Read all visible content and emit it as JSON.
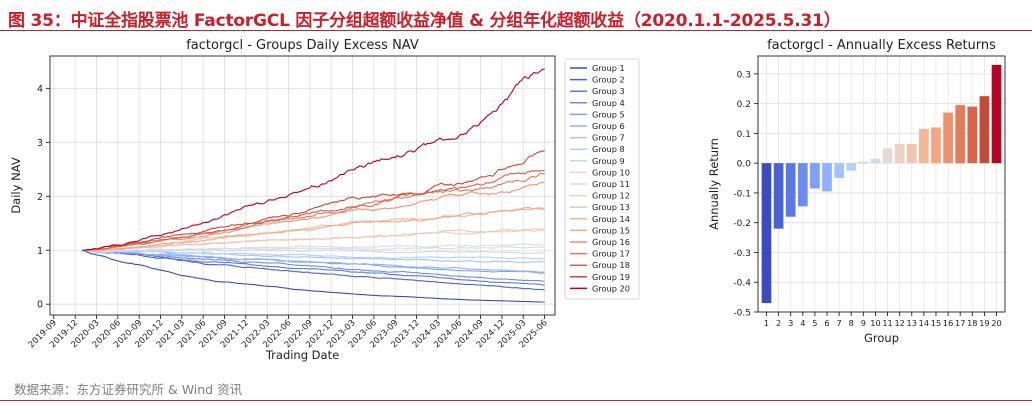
{
  "figure": {
    "title": "图 35：中证全指股票池 FactorGCL 因子分组超额收益净值 & 分组年化超额收益（2020.1.1-2025.5.31）",
    "source": "数据来源：东方证券研究所 & Wind 资讯",
    "accent_color": "#c8202a"
  },
  "chart_data": [
    {
      "type": "line",
      "title": "factorgcl - Groups Daily Excess NAV",
      "xlabel": "Trading Date",
      "ylabel": "Daily NAV",
      "x_ticks": [
        "2019-09",
        "2019-12",
        "2020-03",
        "2020-06",
        "2020-09",
        "2020-12",
        "2021-03",
        "2021-06",
        "2021-09",
        "2021-12",
        "2022-03",
        "2022-06",
        "2022-09",
        "2022-12",
        "2023-03",
        "2023-06",
        "2023-09",
        "2023-12",
        "2024-03",
        "2024-06",
        "2024-09",
        "2024-12",
        "2025-03",
        "2025-06"
      ],
      "y_ticks": [
        0,
        1,
        2,
        3,
        4
      ],
      "ylim": [
        -0.2,
        4.6
      ],
      "grid": true,
      "legend_position": "right",
      "series": [
        {
          "name": "Group 1",
          "color": "#3b4cc0",
          "values": [
            {
              "date": "2020-01-01",
              "nav": 1.0
            },
            {
              "date": "2020-06-30",
              "nav": 0.78
            },
            {
              "date": "2021-06-30",
              "nav": 0.45
            },
            {
              "date": "2022-06-30",
              "nav": 0.27
            },
            {
              "date": "2023-06-30",
              "nav": 0.16
            },
            {
              "date": "2024-06-30",
              "nav": 0.08
            },
            {
              "date": "2025-05-31",
              "nav": 0.04
            }
          ]
        },
        {
          "name": "Group 2",
          "color": "#4a63d3",
          "values": [
            {
              "date": "2020-01-01",
              "nav": 1.0
            },
            {
              "date": "2020-06-30",
              "nav": 0.93
            },
            {
              "date": "2021-06-30",
              "nav": 0.74
            },
            {
              "date": "2022-06-30",
              "nav": 0.6
            },
            {
              "date": "2023-06-30",
              "nav": 0.5
            },
            {
              "date": "2024-06-30",
              "nav": 0.38
            },
            {
              "date": "2025-05-31",
              "nav": 0.27
            }
          ]
        },
        {
          "name": "Group 3",
          "color": "#5a78e4",
          "values": [
            {
              "date": "2020-01-01",
              "nav": 1.0
            },
            {
              "date": "2020-06-30",
              "nav": 0.94
            },
            {
              "date": "2021-06-30",
              "nav": 0.79
            },
            {
              "date": "2022-06-30",
              "nav": 0.66
            },
            {
              "date": "2023-06-30",
              "nav": 0.57
            },
            {
              "date": "2024-06-30",
              "nav": 0.45
            },
            {
              "date": "2025-05-31",
              "nav": 0.35
            }
          ]
        },
        {
          "name": "Group 4",
          "color": "#6b8df0",
          "values": [
            {
              "date": "2020-01-01",
              "nav": 1.0
            },
            {
              "date": "2020-06-30",
              "nav": 0.95
            },
            {
              "date": "2021-06-30",
              "nav": 0.83
            },
            {
              "date": "2022-06-30",
              "nav": 0.72
            },
            {
              "date": "2023-06-30",
              "nav": 0.63
            },
            {
              "date": "2024-06-30",
              "nav": 0.52
            },
            {
              "date": "2025-05-31",
              "nav": 0.42
            }
          ]
        },
        {
          "name": "Group 5",
          "color": "#7ea0f8",
          "values": [
            {
              "date": "2020-01-01",
              "nav": 1.0
            },
            {
              "date": "2020-06-30",
              "nav": 0.96
            },
            {
              "date": "2021-06-30",
              "nav": 0.87
            },
            {
              "date": "2022-06-30",
              "nav": 0.79
            },
            {
              "date": "2023-06-30",
              "nav": 0.72
            },
            {
              "date": "2024-06-30",
              "nav": 0.63
            },
            {
              "date": "2025-05-31",
              "nav": 0.58
            }
          ]
        },
        {
          "name": "Group 6",
          "color": "#90b2fe",
          "values": [
            {
              "date": "2020-01-01",
              "nav": 1.0
            },
            {
              "date": "2020-06-30",
              "nav": 0.96
            },
            {
              "date": "2021-06-30",
              "nav": 0.88
            },
            {
              "date": "2022-06-30",
              "nav": 0.8
            },
            {
              "date": "2023-06-30",
              "nav": 0.73
            },
            {
              "date": "2024-06-30",
              "nav": 0.65
            },
            {
              "date": "2025-05-31",
              "nav": 0.6
            }
          ]
        },
        {
          "name": "Group 7",
          "color": "#a3c2fe",
          "values": [
            {
              "date": "2020-01-01",
              "nav": 1.0
            },
            {
              "date": "2020-06-30",
              "nav": 0.98
            },
            {
              "date": "2021-06-30",
              "nav": 0.93
            },
            {
              "date": "2022-06-30",
              "nav": 0.88
            },
            {
              "date": "2023-06-30",
              "nav": 0.84
            },
            {
              "date": "2024-06-30",
              "nav": 0.8
            },
            {
              "date": "2025-05-31",
              "nav": 0.78
            }
          ]
        },
        {
          "name": "Group 8",
          "color": "#b5cffb",
          "values": [
            {
              "date": "2020-01-01",
              "nav": 1.0
            },
            {
              "date": "2020-06-30",
              "nav": 0.99
            },
            {
              "date": "2021-06-30",
              "nav": 0.95
            },
            {
              "date": "2022-06-30",
              "nav": 0.91
            },
            {
              "date": "2023-06-30",
              "nav": 0.88
            },
            {
              "date": "2024-06-30",
              "nav": 0.85
            },
            {
              "date": "2025-05-31",
              "nav": 0.83
            }
          ]
        },
        {
          "name": "Group 9",
          "color": "#c6d9f4",
          "values": [
            {
              "date": "2020-01-01",
              "nav": 1.0
            },
            {
              "date": "2020-06-30",
              "nav": 1.0
            },
            {
              "date": "2021-06-30",
              "nav": 0.99
            },
            {
              "date": "2022-06-30",
              "nav": 0.98
            },
            {
              "date": "2023-06-30",
              "nav": 0.97
            },
            {
              "date": "2024-06-30",
              "nav": 0.96
            },
            {
              "date": "2025-05-31",
              "nav": 0.95
            }
          ]
        },
        {
          "name": "Group 10",
          "color": "#d5dbe5",
          "values": [
            {
              "date": "2020-01-01",
              "nav": 1.0
            },
            {
              "date": "2020-06-30",
              "nav": 1.01
            },
            {
              "date": "2021-06-30",
              "nav": 1.02
            },
            {
              "date": "2022-06-30",
              "nav": 1.02
            },
            {
              "date": "2023-06-30",
              "nav": 1.03
            },
            {
              "date": "2024-06-30",
              "nav": 1.04
            },
            {
              "date": "2025-05-31",
              "nav": 1.05
            }
          ]
        },
        {
          "name": "Group 11",
          "color": "#e2dad5",
          "values": [
            {
              "date": "2020-01-01",
              "nav": 1.0
            },
            {
              "date": "2020-06-30",
              "nav": 1.02
            },
            {
              "date": "2021-06-30",
              "nav": 1.04
            },
            {
              "date": "2022-06-30",
              "nav": 1.05
            },
            {
              "date": "2023-06-30",
              "nav": 1.07
            },
            {
              "date": "2024-06-30",
              "nav": 1.08
            },
            {
              "date": "2025-05-31",
              "nav": 1.1
            }
          ]
        },
        {
          "name": "Group 12",
          "color": "#edd1c2",
          "values": [
            {
              "date": "2020-01-01",
              "nav": 1.0
            },
            {
              "date": "2020-06-30",
              "nav": 1.03
            },
            {
              "date": "2021-06-30",
              "nav": 1.11
            },
            {
              "date": "2022-06-30",
              "nav": 1.19
            },
            {
              "date": "2023-06-30",
              "nav": 1.26
            },
            {
              "date": "2024-06-30",
              "nav": 1.32
            },
            {
              "date": "2025-05-31",
              "nav": 1.38
            }
          ]
        },
        {
          "name": "Group 13",
          "color": "#f3c4ad",
          "values": [
            {
              "date": "2020-01-01",
              "nav": 1.0
            },
            {
              "date": "2020-06-30",
              "nav": 1.03
            },
            {
              "date": "2021-06-30",
              "nav": 1.12
            },
            {
              "date": "2022-06-30",
              "nav": 1.21
            },
            {
              "date": "2023-06-30",
              "nav": 1.28
            },
            {
              "date": "2024-06-30",
              "nav": 1.34
            },
            {
              "date": "2025-05-31",
              "nav": 1.4
            }
          ]
        },
        {
          "name": "Group 14",
          "color": "#f5b79a",
          "values": [
            {
              "date": "2020-01-01",
              "nav": 1.0
            },
            {
              "date": "2020-06-30",
              "nav": 1.05
            },
            {
              "date": "2021-06-30",
              "nav": 1.22
            },
            {
              "date": "2022-06-30",
              "nav": 1.4
            },
            {
              "date": "2023-06-30",
              "nav": 1.55
            },
            {
              "date": "2024-06-30",
              "nav": 1.66
            },
            {
              "date": "2025-05-31",
              "nav": 1.78
            }
          ]
        },
        {
          "name": "Group 15",
          "color": "#f4a584",
          "values": [
            {
              "date": "2020-01-01",
              "nav": 1.0
            },
            {
              "date": "2020-06-30",
              "nav": 1.05
            },
            {
              "date": "2021-06-30",
              "nav": 1.21
            },
            {
              "date": "2022-06-30",
              "nav": 1.38
            },
            {
              "date": "2023-06-30",
              "nav": 1.52
            },
            {
              "date": "2024-06-30",
              "nav": 1.64
            },
            {
              "date": "2025-05-31",
              "nav": 1.75
            }
          ]
        },
        {
          "name": "Group 16",
          "color": "#ef916f",
          "values": [
            {
              "date": "2020-01-01",
              "nav": 1.0
            },
            {
              "date": "2020-06-30",
              "nav": 1.07
            },
            {
              "date": "2021-06-30",
              "nav": 1.3
            },
            {
              "date": "2022-06-30",
              "nav": 1.55
            },
            {
              "date": "2023-06-30",
              "nav": 1.8
            },
            {
              "date": "2024-06-30",
              "nav": 2.0
            },
            {
              "date": "2025-05-31",
              "nav": 2.25
            }
          ]
        },
        {
          "name": "Group 17",
          "color": "#e57a5b",
          "values": [
            {
              "date": "2020-01-01",
              "nav": 1.0
            },
            {
              "date": "2020-06-30",
              "nav": 1.08
            },
            {
              "date": "2021-06-30",
              "nav": 1.33
            },
            {
              "date": "2022-06-30",
              "nav": 1.62
            },
            {
              "date": "2023-06-30",
              "nav": 1.9
            },
            {
              "date": "2024-06-30",
              "nav": 2.12
            },
            {
              "date": "2025-05-31",
              "nav": 2.42
            }
          ]
        },
        {
          "name": "Group 18",
          "color": "#d8634a",
          "values": [
            {
              "date": "2020-01-01",
              "nav": 1.0
            },
            {
              "date": "2020-06-30",
              "nav": 1.08
            },
            {
              "date": "2021-06-30",
              "nav": 1.34
            },
            {
              "date": "2022-06-30",
              "nav": 1.63
            },
            {
              "date": "2023-06-30",
              "nav": 1.93
            },
            {
              "date": "2024-06-30",
              "nav": 2.16
            },
            {
              "date": "2025-05-31",
              "nav": 2.47
            }
          ]
        },
        {
          "name": "Group 19",
          "color": "#c64a3a",
          "values": [
            {
              "date": "2020-01-01",
              "nav": 1.0
            },
            {
              "date": "2020-06-30",
              "nav": 1.09
            },
            {
              "date": "2021-06-30",
              "nav": 1.38
            },
            {
              "date": "2022-06-30",
              "nav": 1.7
            },
            {
              "date": "2023-06-30",
              "nav": 2.02
            },
            {
              "date": "2024-06-30",
              "nav": 2.25
            },
            {
              "date": "2025-05-31",
              "nav": 2.85
            }
          ]
        },
        {
          "name": "Group 20",
          "color": "#b40426",
          "values": [
            {
              "date": "2020-01-01",
              "nav": 1.0
            },
            {
              "date": "2020-06-30",
              "nav": 1.12
            },
            {
              "date": "2021-06-30",
              "nav": 1.56
            },
            {
              "date": "2022-06-30",
              "nav": 2.1
            },
            {
              "date": "2023-06-30",
              "nav": 2.65
            },
            {
              "date": "2024-06-30",
              "nav": 3.1
            },
            {
              "date": "2025-05-31",
              "nav": 4.35
            }
          ]
        }
      ]
    },
    {
      "type": "bar",
      "title": "factorgcl - Annually Excess Returns",
      "xlabel": "Group",
      "ylabel": "Annually Return",
      "categories": [
        "1",
        "2",
        "3",
        "4",
        "5",
        "6",
        "7",
        "8",
        "9",
        "10",
        "11",
        "12",
        "13",
        "14",
        "15",
        "16",
        "17",
        "18",
        "19",
        "20"
      ],
      "values": [
        -0.47,
        -0.22,
        -0.18,
        -0.145,
        -0.085,
        -0.095,
        -0.05,
        -0.025,
        0.005,
        0.015,
        0.05,
        0.065,
        0.065,
        0.115,
        0.12,
        0.17,
        0.195,
        0.19,
        0.225,
        0.33
      ],
      "colors": [
        "#3b4cc0",
        "#4a63d3",
        "#5a78e4",
        "#6b8df0",
        "#7ea0f8",
        "#90b2fe",
        "#a3c2fe",
        "#b5cffb",
        "#c6d9f4",
        "#d5dbe5",
        "#e2dad5",
        "#edd1c2",
        "#f3c4ad",
        "#f5b79a",
        "#f4a584",
        "#ef916f",
        "#e57a5b",
        "#d8634a",
        "#c64a3a",
        "#b40426"
      ],
      "y_ticks": [
        -0.5,
        -0.4,
        -0.3,
        -0.2,
        -0.1,
        0.0,
        0.1,
        0.2,
        0.3
      ],
      "ylim": [
        -0.5,
        0.36
      ],
      "grid": true
    }
  ]
}
